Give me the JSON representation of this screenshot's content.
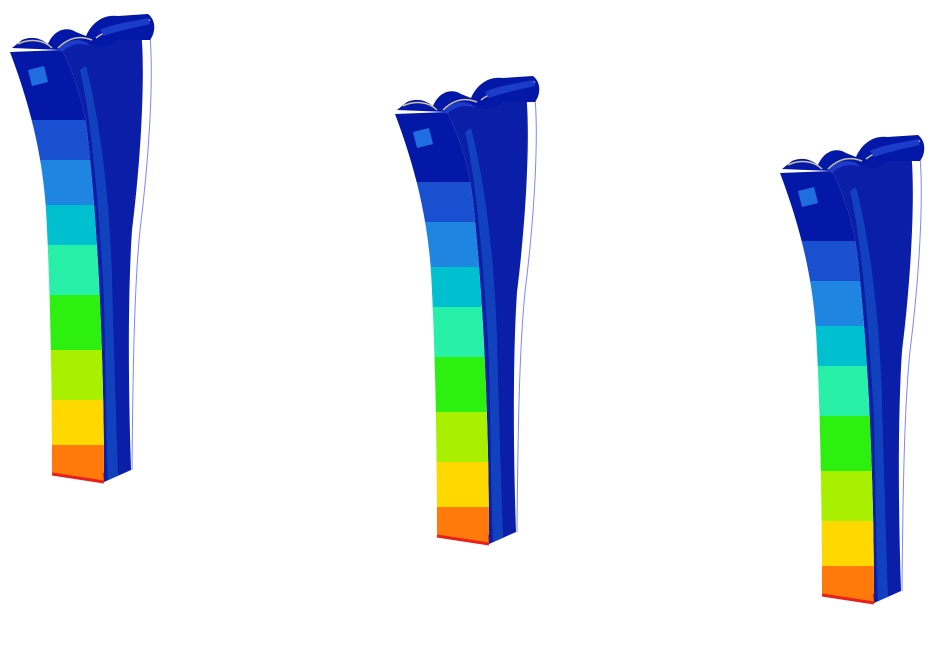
{
  "scene": {
    "description_visible_text": "",
    "background_color": "#ffffff",
    "colormap": [
      "#e8201a",
      "#ff7a0a",
      "#ffd800",
      "#a8f000",
      "#2df010",
      "#28f0a8",
      "#00c0d0",
      "#1e86e0",
      "#1850d0",
      "#0a2fc0",
      "#0418a8"
    ],
    "side_shade": "#0a1ea8",
    "outline_color": "#7c86ff",
    "model_count": 3
  }
}
